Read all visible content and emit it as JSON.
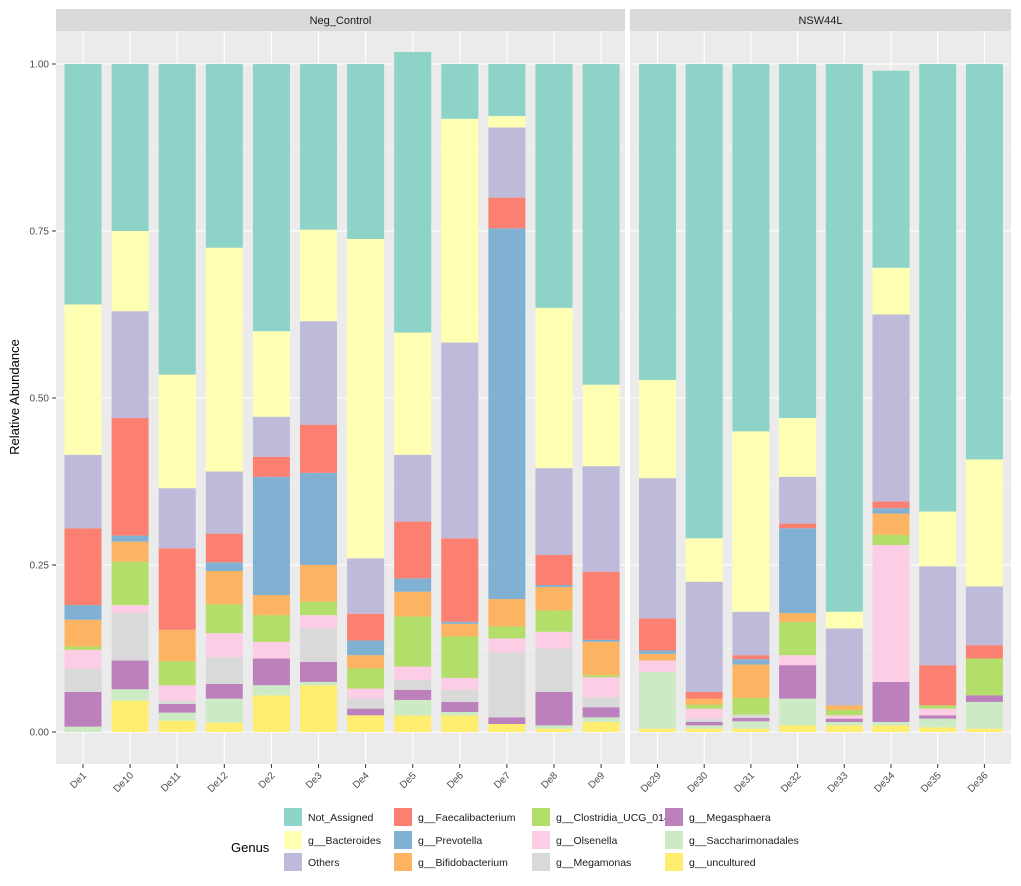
{
  "chart_data": {
    "type": "bar",
    "stacked": true,
    "ylabel": "Relative Abundance",
    "ylim": [
      0,
      1
    ],
    "yticks": [
      "0.00",
      "0.25",
      "0.50",
      "0.75",
      "1.00"
    ],
    "legend_title": "Genus",
    "legend_position": "bottom",
    "genera": [
      {
        "name": "Not_Assigned",
        "color": "#8DD3C7"
      },
      {
        "name": "g__Bacteroides",
        "color": "#FFFFB3"
      },
      {
        "name": "Others",
        "color": "#BEBADA"
      },
      {
        "name": "g__Faecalibacterium",
        "color": "#FB8072"
      },
      {
        "name": "g__Prevotella",
        "color": "#80B1D3"
      },
      {
        "name": "g__Bifidobacterium",
        "color": "#FDB462"
      },
      {
        "name": "g__Clostridia_UCG_014",
        "color": "#B3DE69"
      },
      {
        "name": "g__Olsenella",
        "color": "#FCCDE5"
      },
      {
        "name": "g__Megamonas",
        "color": "#D9D9D9"
      },
      {
        "name": "g__Megasphaera",
        "color": "#BC80BD"
      },
      {
        "name": "g__Saccharimonadales",
        "color": "#CCEBC5"
      },
      {
        "name": "g__uncultured",
        "color": "#FFED6F"
      }
    ],
    "stack_order": [
      "g__uncultured",
      "g__Saccharimonadales",
      "g__Megasphaera",
      "g__Megamonas",
      "g__Olsenella",
      "g__Clostridia_UCG_014",
      "g__Bifidobacterium",
      "g__Prevotella",
      "g__Faecalibacterium",
      "Others",
      "g__Bacteroides",
      "Not_Assigned"
    ],
    "panels": [
      {
        "title": "Neg_Control",
        "samples": [
          {
            "sample": "De1",
            "values": {
              "g__uncultured": 0.0,
              "g__Saccharimonadales": 0.008,
              "g__Megasphaera": 0.052,
              "g__Megamonas": 0.035,
              "g__Olsenella": 0.028,
              "g__Clostridia_UCG_014": 0.005,
              "g__Bifidobacterium": 0.04,
              "g__Prevotella": 0.022,
              "g__Faecalibacterium": 0.115,
              "Others": 0.11,
              "g__Bacteroides": 0.225,
              "Not_Assigned": 0.36
            }
          },
          {
            "sample": "De10",
            "values": {
              "g__uncultured": 0.047,
              "g__Saccharimonadales": 0.017,
              "g__Megasphaera": 0.043,
              "g__Megamonas": 0.071,
              "g__Olsenella": 0.012,
              "g__Clostridia_UCG_014": 0.065,
              "g__Bifidobacterium": 0.03,
              "g__Prevotella": 0.009,
              "g__Faecalibacterium": 0.176,
              "Others": 0.16,
              "g__Bacteroides": 0.12,
              "Not_Assigned": 0.25
            }
          },
          {
            "sample": "De11",
            "values": {
              "g__uncultured": 0.017,
              "g__Saccharimonadales": 0.012,
              "g__Megasphaera": 0.013,
              "g__Megamonas": 0.005,
              "g__Olsenella": 0.023,
              "g__Clostridia_UCG_014": 0.036,
              "g__Bifidobacterium": 0.047,
              "g__Prevotella": 0.0,
              "g__Faecalibacterium": 0.122,
              "Others": 0.09,
              "g__Bacteroides": 0.17,
              "Not_Assigned": 0.465
            }
          },
          {
            "sample": "De12",
            "values": {
              "g__uncultured": 0.014,
              "g__Saccharimonadales": 0.036,
              "g__Megasphaera": 0.022,
              "g__Megamonas": 0.04,
              "g__Olsenella": 0.036,
              "g__Clostridia_UCG_014": 0.043,
              "g__Bifidobacterium": 0.05,
              "g__Prevotella": 0.013,
              "g__Faecalibacterium": 0.043,
              "Others": 0.093,
              "g__Bacteroides": 0.335,
              "Not_Assigned": 0.275
            }
          },
          {
            "sample": "De2",
            "values": {
              "g__uncultured": 0.055,
              "g__Saccharimonadales": 0.015,
              "g__Megasphaera": 0.04,
              "g__Megamonas": 0.0,
              "g__Olsenella": 0.025,
              "g__Clostridia_UCG_014": 0.04,
              "g__Bifidobacterium": 0.03,
              "g__Prevotella": 0.177,
              "g__Faecalibacterium": 0.03,
              "Others": 0.06,
              "g__Bacteroides": 0.128,
              "Not_Assigned": 0.4
            }
          },
          {
            "sample": "De3",
            "values": {
              "g__uncultured": 0.07,
              "g__Saccharimonadales": 0.005,
              "g__Megasphaera": 0.03,
              "g__Megamonas": 0.05,
              "g__Olsenella": 0.02,
              "g__Clostridia_UCG_014": 0.02,
              "g__Bifidobacterium": 0.055,
              "g__Prevotella": 0.138,
              "g__Faecalibacterium": 0.072,
              "Others": 0.155,
              "g__Bacteroides": 0.137,
              "Not_Assigned": 0.248
            }
          },
          {
            "sample": "De4",
            "values": {
              "g__uncultured": 0.025,
              "g__Saccharimonadales": 0.0,
              "g__Megasphaera": 0.01,
              "g__Megamonas": 0.015,
              "g__Olsenella": 0.015,
              "g__Clostridia_UCG_014": 0.03,
              "g__Bifidobacterium": 0.02,
              "g__Prevotella": 0.022,
              "g__Faecalibacterium": 0.04,
              "Others": 0.083,
              "g__Bacteroides": 0.478,
              "Not_Assigned": 0.262
            }
          },
          {
            "sample": "De5",
            "values": {
              "g__uncultured": 0.025,
              "g__Saccharimonadales": 0.023,
              "g__Megasphaera": 0.015,
              "g__Megamonas": 0.015,
              "g__Olsenella": 0.02,
              "g__Clostridia_UCG_014": 0.075,
              "g__Bifidobacterium": 0.037,
              "g__Prevotella": 0.02,
              "g__Faecalibacterium": 0.085,
              "Others": 0.1,
              "g__Bacteroides": 0.183,
              "Not_Assigned": 0.42
            }
          },
          {
            "sample": "De6",
            "values": {
              "g__uncultured": 0.025,
              "g__Saccharimonadales": 0.005,
              "g__Megasphaera": 0.015,
              "g__Megamonas": 0.018,
              "g__Olsenella": 0.018,
              "g__Clostridia_UCG_014": 0.062,
              "g__Bifidobacterium": 0.019,
              "g__Prevotella": 0.003,
              "g__Faecalibacterium": 0.125,
              "Others": 0.293,
              "g__Bacteroides": 0.335,
              "Not_Assigned": 0.082
            }
          },
          {
            "sample": "De7",
            "values": {
              "g__uncultured": 0.012,
              "g__Saccharimonadales": 0.0,
              "g__Megasphaera": 0.01,
              "g__Megamonas": 0.097,
              "g__Olsenella": 0.021,
              "g__Clostridia_UCG_014": 0.018,
              "g__Bifidobacterium": 0.041,
              "g__Prevotella": 0.555,
              "g__Faecalibacterium": 0.046,
              "Others": 0.105,
              "g__Bacteroides": 0.017,
              "Not_Assigned": 0.078
            }
          },
          {
            "sample": "De8",
            "values": {
              "g__uncultured": 0.005,
              "g__Saccharimonadales": 0.005,
              "g__Megasphaera": 0.05,
              "g__Megamonas": 0.065,
              "g__Olsenella": 0.025,
              "g__Clostridia_UCG_014": 0.032,
              "g__Bifidobacterium": 0.035,
              "g__Prevotella": 0.003,
              "g__Faecalibacterium": 0.045,
              "Others": 0.13,
              "g__Bacteroides": 0.24,
              "Not_Assigned": 0.365
            }
          },
          {
            "sample": "De9",
            "values": {
              "g__uncultured": 0.015,
              "g__Saccharimonadales": 0.007,
              "g__Megasphaera": 0.015,
              "g__Megamonas": 0.015,
              "g__Olsenella": 0.03,
              "g__Clostridia_UCG_014": 0.003,
              "g__Bifidobacterium": 0.05,
              "g__Prevotella": 0.003,
              "g__Faecalibacterium": 0.102,
              "Others": 0.158,
              "g__Bacteroides": 0.122,
              "Not_Assigned": 0.48
            }
          }
        ]
      },
      {
        "title": "NSW44L",
        "samples": [
          {
            "sample": "De29",
            "values": {
              "g__uncultured": 0.005,
              "g__Saccharimonadales": 0.085,
              "g__Megasphaera": 0.0,
              "g__Megamonas": 0.0,
              "g__Olsenella": 0.017,
              "g__Clostridia_UCG_014": 0.0,
              "g__Bifidobacterium": 0.01,
              "g__Prevotella": 0.005,
              "g__Faecalibacterium": 0.048,
              "Others": 0.21,
              "g__Bacteroides": 0.147,
              "Not_Assigned": 0.473
            }
          },
          {
            "sample": "De30",
            "values": {
              "g__uncultured": 0.005,
              "g__Saccharimonadales": 0.005,
              "g__Megasphaera": 0.005,
              "g__Megamonas": 0.005,
              "g__Olsenella": 0.015,
              "g__Clostridia_UCG_014": 0.006,
              "g__Bifidobacterium": 0.009,
              "g__Prevotella": 0.0,
              "g__Faecalibacterium": 0.01,
              "Others": 0.165,
              "g__Bacteroides": 0.065,
              "Not_Assigned": 0.71
            }
          },
          {
            "sample": "De31",
            "values": {
              "g__uncultured": 0.005,
              "g__Saccharimonadales": 0.011,
              "g__Megasphaera": 0.005,
              "g__Megamonas": 0.005,
              "g__Olsenella": 0.0,
              "g__Clostridia_UCG_014": 0.025,
              "g__Bifidobacterium": 0.05,
              "g__Prevotella": 0.008,
              "g__Faecalibacterium": 0.006,
              "Others": 0.065,
              "g__Bacteroides": 0.27,
              "Not_Assigned": 0.55
            }
          },
          {
            "sample": "De32",
            "values": {
              "g__uncultured": 0.01,
              "g__Saccharimonadales": 0.04,
              "g__Megasphaera": 0.05,
              "g__Megamonas": 0.0,
              "g__Olsenella": 0.015,
              "g__Clostridia_UCG_014": 0.05,
              "g__Bifidobacterium": 0.013,
              "g__Prevotella": 0.127,
              "g__Faecalibacterium": 0.007,
              "Others": 0.07,
              "g__Bacteroides": 0.088,
              "Not_Assigned": 0.53
            }
          },
          {
            "sample": "De33",
            "values": {
              "g__uncultured": 0.01,
              "g__Saccharimonadales": 0.005,
              "g__Megasphaera": 0.005,
              "g__Megamonas": 0.0,
              "g__Olsenella": 0.005,
              "g__Clostridia_UCG_014": 0.008,
              "g__Bifidobacterium": 0.007,
              "g__Prevotella": 0.0,
              "g__Faecalibacterium": 0.0,
              "Others": 0.115,
              "g__Bacteroides": 0.025,
              "Not_Assigned": 0.82
            }
          },
          {
            "sample": "De34",
            "values": {
              "g__uncultured": 0.01,
              "g__Saccharimonadales": 0.005,
              "g__Megasphaera": 0.06,
              "g__Megamonas": 0.0,
              "g__Olsenella": 0.205,
              "g__Clostridia_UCG_014": 0.015,
              "g__Bifidobacterium": 0.032,
              "g__Prevotella": 0.008,
              "g__Faecalibacterium": 0.01,
              "Others": 0.28,
              "g__Bacteroides": 0.07,
              "Not_Assigned": 0.295
            }
          },
          {
            "sample": "De35",
            "values": {
              "g__uncultured": 0.007,
              "g__Saccharimonadales": 0.013,
              "g__Megasphaera": 0.005,
              "g__Megamonas": 0.0,
              "g__Olsenella": 0.01,
              "g__Clostridia_UCG_014": 0.005,
              "g__Bifidobacterium": 0.0,
              "g__Prevotella": 0.0,
              "g__Faecalibacterium": 0.06,
              "Others": 0.148,
              "g__Bacteroides": 0.082,
              "Not_Assigned": 0.67
            }
          },
          {
            "sample": "De36",
            "values": {
              "g__uncultured": 0.005,
              "g__Saccharimonadales": 0.04,
              "g__Megasphaera": 0.01,
              "g__Megamonas": 0.0,
              "g__Olsenella": 0.0,
              "g__Clostridia_UCG_014": 0.055,
              "g__Bifidobacterium": 0.0,
              "g__Prevotella": 0.0,
              "g__Faecalibacterium": 0.02,
              "Others": 0.088,
              "g__Bacteroides": 0.19,
              "Not_Assigned": 0.592
            }
          }
        ]
      }
    ]
  }
}
